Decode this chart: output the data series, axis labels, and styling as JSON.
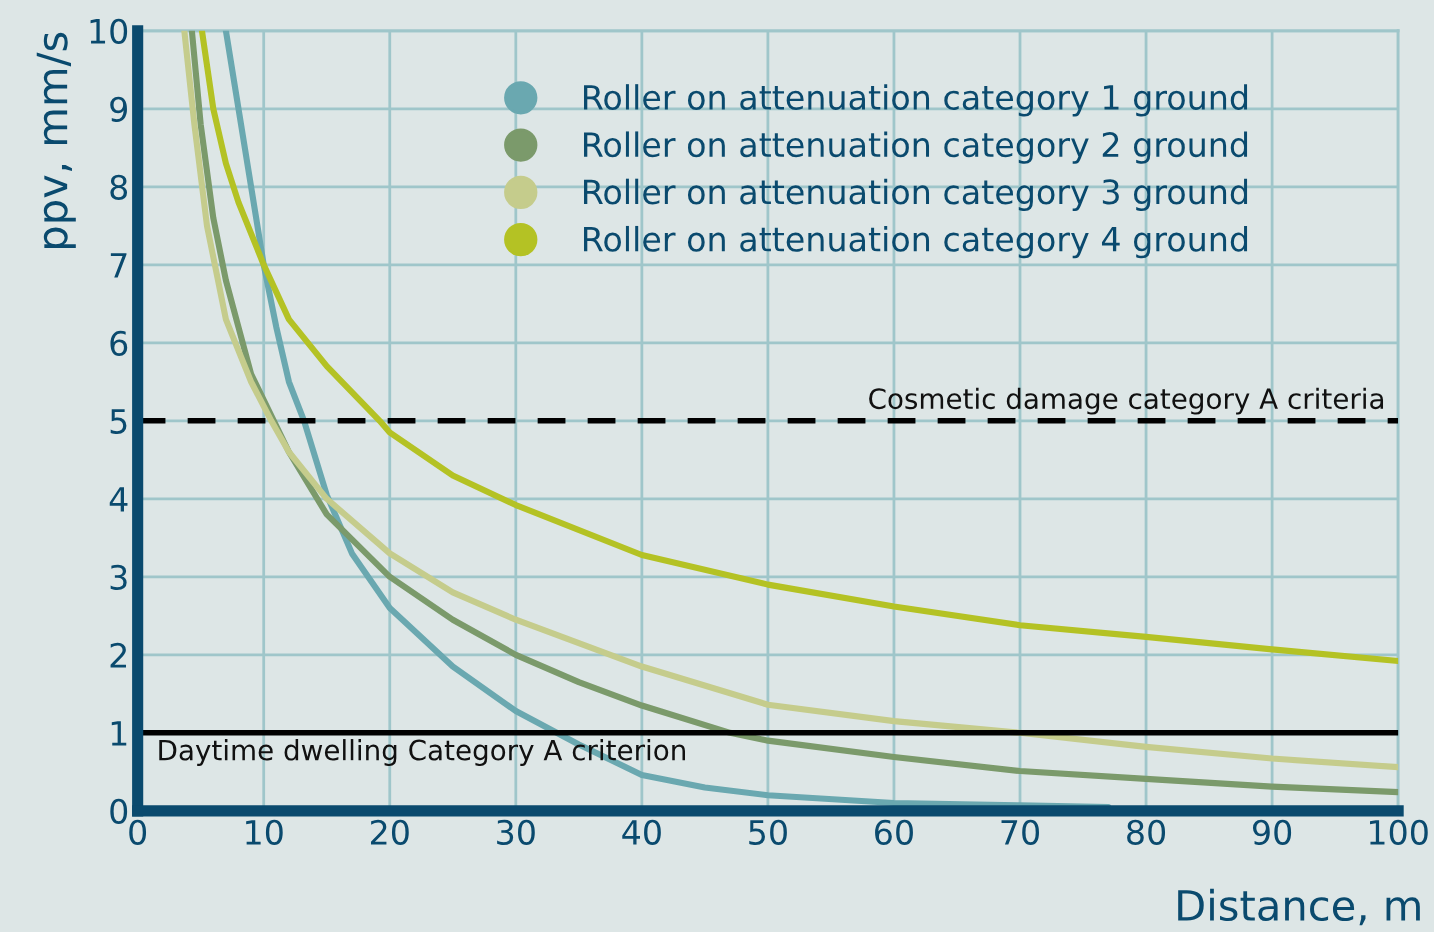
{
  "chart_data": {
    "type": "line",
    "xlabel": "Distance, m",
    "ylabel": "ppv, mm/s",
    "xlim": [
      0,
      100
    ],
    "ylim": [
      0,
      10
    ],
    "xticks": [
      0,
      10,
      20,
      30,
      40,
      50,
      60,
      70,
      80,
      90,
      100
    ],
    "yticks": [
      0,
      1,
      2,
      3,
      4,
      5,
      6,
      7,
      8,
      9,
      10
    ],
    "grid": true,
    "legend": "top",
    "marker": "none",
    "line_style": "solid",
    "series": [
      {
        "name": "Roller on attenuation category 1 ground",
        "color": "#6aa8b0",
        "x": [
          7,
          8,
          9,
          10,
          11,
          12,
          13.2,
          15,
          17,
          20,
          25,
          30,
          35,
          40,
          45,
          50,
          60,
          70,
          77
        ],
        "values": [
          10,
          9,
          8,
          7,
          6.2,
          5.5,
          5,
          4.05,
          3.3,
          2.6,
          1.85,
          1.28,
          0.85,
          0.46,
          0.3,
          0.2,
          0.1,
          0.07,
          0.05
        ]
      },
      {
        "name": "Roller on attenuation category 2 ground",
        "color": "#7b9a6b",
        "x": [
          4.3,
          5,
          6,
          7,
          8,
          9,
          10.8,
          12,
          15,
          20,
          25,
          30,
          35,
          40,
          47,
          50,
          60,
          70,
          80,
          90,
          100
        ],
        "values": [
          10,
          8.8,
          7.6,
          6.8,
          6.2,
          5.6,
          5,
          4.6,
          3.8,
          3.0,
          2.45,
          2.0,
          1.65,
          1.35,
          1.0,
          0.9,
          0.69,
          0.51,
          0.41,
          0.31,
          0.24
        ]
      },
      {
        "name": "Roller on attenuation category 3 ground",
        "color": "#c5cc8c",
        "x": [
          3.7,
          4.5,
          5.5,
          7,
          9,
          10.6,
          12,
          15,
          20,
          25,
          30,
          40,
          50,
          60,
          70,
          80,
          90,
          100
        ],
        "values": [
          10,
          8.8,
          7.5,
          6.3,
          5.5,
          5,
          4.6,
          4.0,
          3.3,
          2.8,
          2.45,
          1.85,
          1.36,
          1.15,
          1.0,
          0.82,
          0.67,
          0.56
        ]
      },
      {
        "name": "Roller on attenuation category 4 ground",
        "color": "#b4c224",
        "x": [
          5.1,
          6,
          7,
          8,
          10,
          12,
          15,
          19.2,
          20,
          25,
          30,
          40,
          50,
          60,
          70,
          80,
          90,
          100
        ],
        "values": [
          10,
          9.0,
          8.3,
          7.8,
          7.0,
          6.3,
          5.7,
          5,
          4.85,
          4.3,
          3.92,
          3.28,
          2.9,
          2.62,
          2.38,
          2.23,
          2.07,
          1.92
        ]
      }
    ],
    "ref_lines": [
      {
        "axis": "y",
        "value": 5,
        "label": "Cosmetic damage category A criteria",
        "color": "#000000",
        "line_style": "dashed"
      },
      {
        "axis": "y",
        "value": 1,
        "label": "Daytime dwelling Category A criterion",
        "color": "#000000",
        "line_style": "solid"
      }
    ]
  }
}
